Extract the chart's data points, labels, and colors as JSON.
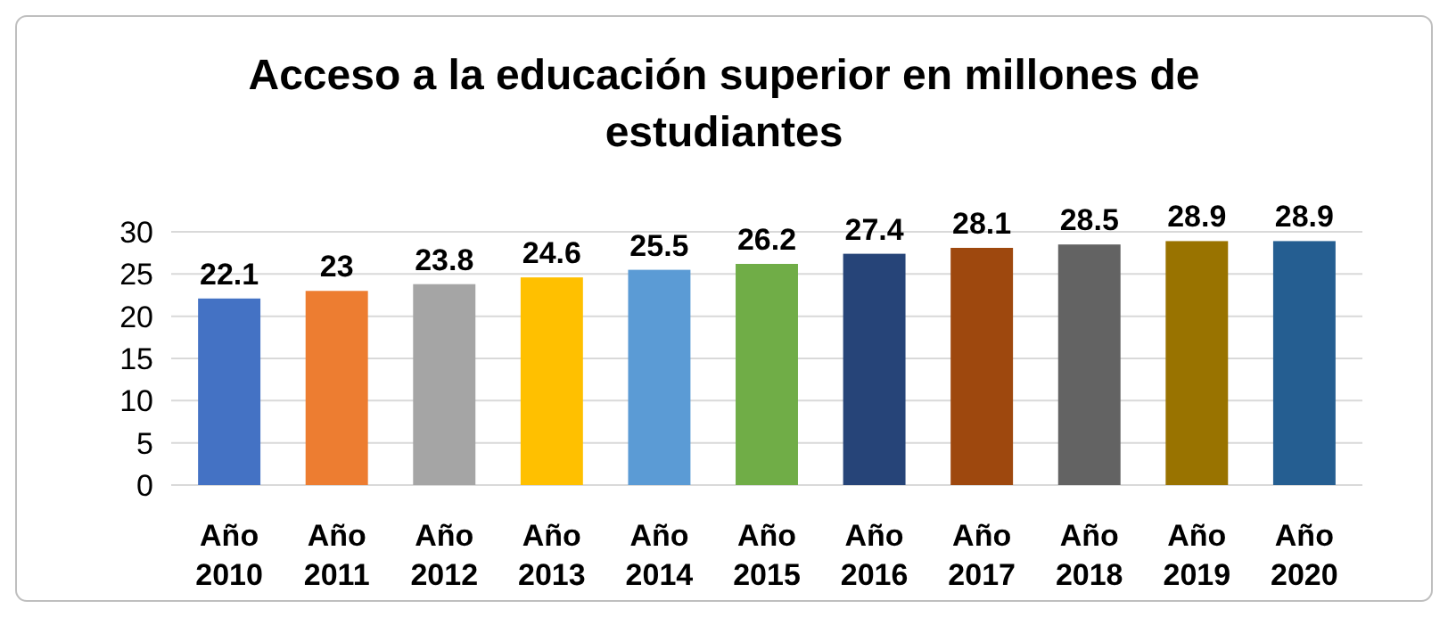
{
  "chart_data": {
    "type": "bar",
    "title": "Acceso a la educación superior en millones de estudiantes",
    "categories": [
      "Año 2010",
      "Año 2011",
      "Año 2012",
      "Año 2013",
      "Año 2014",
      "Año 2015",
      "Año 2016",
      "Año 2017",
      "Año 2018",
      "Año 2019",
      "Año 2020"
    ],
    "values": [
      22.1,
      23,
      23.8,
      24.6,
      25.5,
      26.2,
      27.4,
      28.1,
      28.5,
      28.9,
      28.9
    ],
    "colors": [
      "#4472c4",
      "#ed7d31",
      "#a5a5a5",
      "#ffc000",
      "#5b9bd5",
      "#70ad47",
      "#264478",
      "#9e480e",
      "#636363",
      "#997300",
      "#255e91"
    ],
    "ylim": [
      0,
      30
    ],
    "yticks": [
      0,
      5,
      10,
      15,
      20,
      25,
      30
    ],
    "grid": "y",
    "data_labels": true
  }
}
